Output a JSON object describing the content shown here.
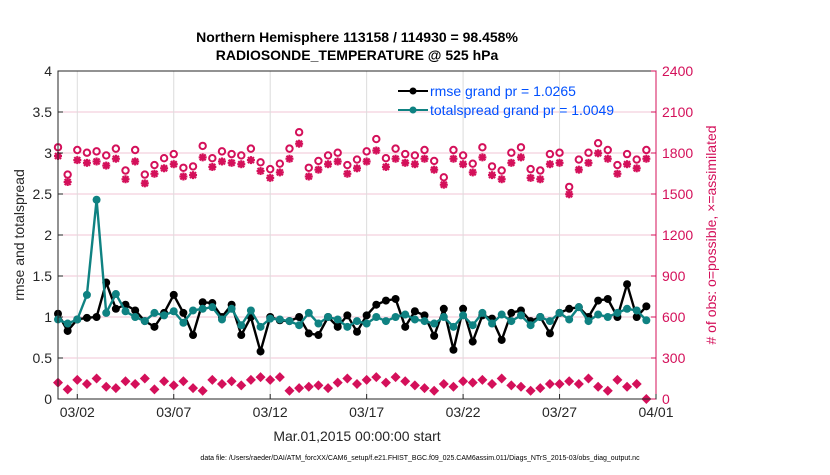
{
  "chart_data": {
    "type": "line",
    "title": [
      "Northern Hemisphere 113158 / 114930 = 98.458%",
      "RADIOSONDE_TEMPERATURE @ 525 hPa"
    ],
    "xlabel": "Mar.01,2015 00:00:00 start",
    "ylabel": "rmse and totalspread",
    "y2label": "# of obs: o=possible, ×=assimilated",
    "footer": "data file: /Users/raeder/DAI/ATM_forcXX/CAM6_setup/f.e21.FHIST_BGC.f09_025.CAM6assim.011/Diags_NTrS_2015-03/obs_diag_output.nc",
    "xlim_days": [
      0,
      31
    ],
    "x_step_days": 0.5,
    "x_ticks": [
      {
        "day": 1,
        "label": "03/02"
      },
      {
        "day": 6,
        "label": "03/07"
      },
      {
        "day": 11,
        "label": "03/12"
      },
      {
        "day": 16,
        "label": "03/17"
      },
      {
        "day": 21,
        "label": "03/22"
      },
      {
        "day": 26,
        "label": "03/27"
      },
      {
        "day": 31,
        "label": "04/01"
      }
    ],
    "ylim": [
      0,
      4
    ],
    "y_ticks": [
      "0",
      "0.5",
      "1",
      "1.5",
      "2",
      "2.5",
      "3",
      "3.5",
      "4"
    ],
    "y2lim": [
      0,
      2400
    ],
    "y2_ticks": [
      "0",
      "300",
      "600",
      "900",
      "1200",
      "1500",
      "1800",
      "2100",
      "2400"
    ],
    "legend_position": "top-right",
    "grid": true,
    "colors": {
      "rmse": "#000000",
      "spread": "#0f8282",
      "obs": "#d4105a",
      "legend_text": "#0050ff"
    },
    "series": [
      {
        "name": "rmse grand pr = 1.0265",
        "axis": "left",
        "values": [
          1.04,
          0.83,
          0.97,
          0.99,
          1.0,
          1.42,
          1.1,
          1.15,
          1.08,
          0.95,
          0.88,
          1.05,
          1.27,
          1.05,
          0.78,
          1.18,
          1.17,
          1.0,
          1.15,
          0.78,
          1.0,
          0.58,
          1.0,
          0.96,
          0.95,
          1.0,
          0.8,
          0.78,
          1.0,
          0.88,
          1.02,
          0.82,
          1.02,
          1.15,
          1.2,
          1.22,
          0.88,
          1.07,
          1.02,
          0.77,
          1.1,
          0.6,
          1.1,
          0.7,
          1.02,
          0.98,
          0.72,
          1.05,
          1.08,
          0.95,
          1.0,
          0.8,
          1.05,
          1.1,
          1.12,
          1.0,
          1.2,
          1.22,
          1.0,
          1.4,
          1.0,
          1.13
        ]
      },
      {
        "name": "totalspread grand pr = 1.0049",
        "axis": "left",
        "values": [
          0.97,
          0.92,
          0.97,
          1.27,
          2.43,
          1.05,
          1.28,
          1.07,
          1.0,
          0.95,
          1.05,
          1.02,
          1.07,
          0.93,
          1.08,
          1.1,
          1.12,
          0.97,
          1.1,
          0.9,
          1.08,
          0.88,
          0.98,
          0.97,
          0.95,
          0.9,
          1.05,
          0.92,
          1.0,
          0.97,
          0.88,
          0.95,
          0.92,
          1.0,
          0.95,
          1.0,
          1.03,
          0.97,
          0.95,
          0.92,
          1.0,
          0.88,
          1.02,
          0.9,
          1.05,
          0.92,
          1.03,
          0.95,
          1.02,
          0.9,
          1.0,
          0.95,
          1.05,
          0.97,
          1.12,
          0.95,
          1.03,
          1.0,
          1.05,
          1.1,
          1.08,
          0.96
        ]
      },
      {
        "name": "possible",
        "axis": "right",
        "values": [
          1820,
          1620,
          1800,
          1780,
          1790,
          1760,
          1810,
          1650,
          1800,
          1620,
          1690,
          1740,
          1770,
          1670,
          1680,
          1830,
          1740,
          1790,
          1770,
          1760,
          1810,
          1710,
          1660,
          1700,
          1810,
          1930,
          1670,
          1720,
          1760,
          1780,
          1690,
          1730,
          1790,
          1880,
          1740,
          1810,
          1770,
          1760,
          1800,
          1720,
          1600,
          1800,
          1760,
          1700,
          1820,
          1680,
          1650,
          1780,
          1820,
          1660,
          1650,
          1770,
          1780,
          1530,
          1730,
          1780,
          1850,
          1800,
          1690,
          1770,
          1730,
          1800
        ]
      },
      {
        "name": "assimilated",
        "axis": "right",
        "values": [
          1800,
          1610,
          1770,
          1750,
          1760,
          1730,
          1780,
          1630,
          1760,
          1600,
          1670,
          1710,
          1740,
          1650,
          1660,
          1790,
          1720,
          1760,
          1750,
          1740,
          1770,
          1690,
          1640,
          1680,
          1780,
          1890,
          1650,
          1700,
          1740,
          1760,
          1670,
          1710,
          1760,
          1840,
          1720,
          1780,
          1750,
          1740,
          1780,
          1700,
          1590,
          1780,
          1740,
          1680,
          1790,
          1660,
          1630,
          1750,
          1790,
          1640,
          1630,
          1740,
          1750,
          1520,
          1700,
          1750,
          1820,
          1780,
          1670,
          1740,
          1710,
          1780
        ]
      },
      {
        "name": "low count",
        "axis": "right",
        "values": [
          120,
          70,
          140,
          110,
          150,
          90,
          80,
          130,
          110,
          150,
          70,
          130,
          100,
          130,
          80,
          60,
          140,
          110,
          130,
          100,
          140,
          160,
          140,
          160,
          60,
          80,
          90,
          100,
          80,
          120,
          150,
          110,
          140,
          160,
          120,
          160,
          130,
          100,
          80,
          60,
          110,
          90,
          130,
          120,
          140,
          110,
          150,
          100,
          90,
          60,
          80,
          110,
          110,
          130,
          110,
          150,
          90,
          60,
          140,
          90,
          110,
          0
        ]
      }
    ]
  }
}
